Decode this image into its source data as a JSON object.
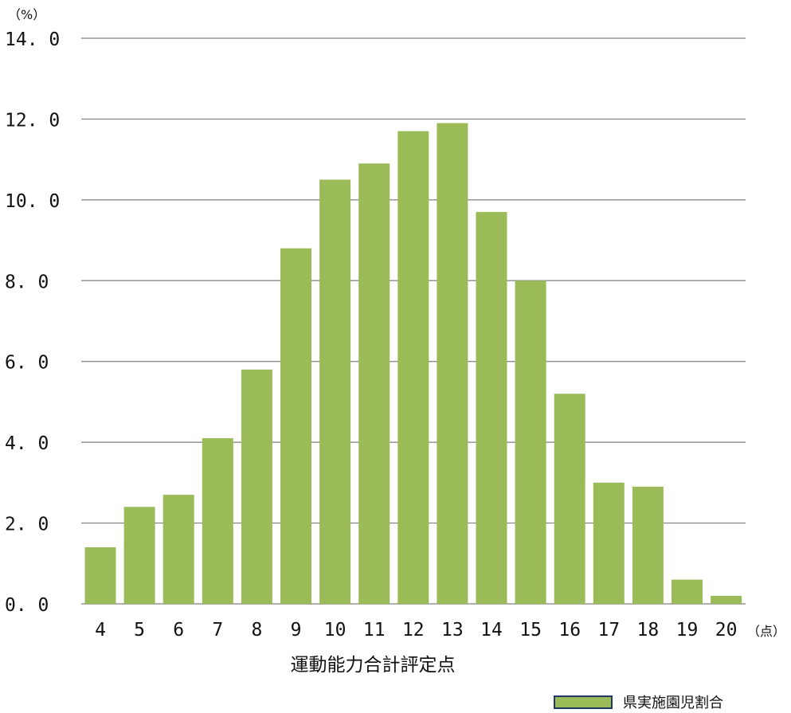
{
  "chart_data": {
    "type": "bar",
    "y_unit": "（%）",
    "x_unit": "（点）",
    "xlabel": "運動能力合計評定点",
    "categories": [
      "4",
      "5",
      "6",
      "7",
      "8",
      "9",
      "10",
      "11",
      "12",
      "13",
      "14",
      "15",
      "16",
      "17",
      "18",
      "19",
      "20"
    ],
    "series": [
      {
        "name": "県実施園児割合",
        "values": [
          1.4,
          2.4,
          2.7,
          4.1,
          5.8,
          8.8,
          10.5,
          10.9,
          11.7,
          11.9,
          9.7,
          8.0,
          5.2,
          3.0,
          2.9,
          0.6,
          0.2
        ]
      }
    ],
    "yticks": [
      "0. 0",
      "2. 0",
      "4. 0",
      "6. 0",
      "8. 0",
      "10. 0",
      "12. 0",
      "14. 0"
    ],
    "ylim": [
      0,
      14
    ],
    "grid": true,
    "legend_position": "bottom-right",
    "colors": {
      "bar": "#9bbb59",
      "grid": "#7f7f7f",
      "legend_border": "#1f3864"
    }
  }
}
